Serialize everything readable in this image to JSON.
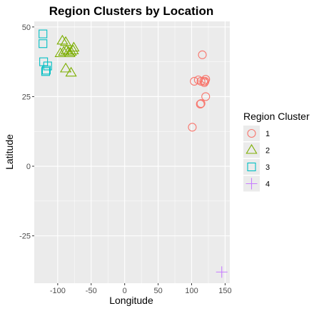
{
  "chart_data": {
    "type": "scatter",
    "title": "Region Clusters by Location",
    "xlabel": "Longitude",
    "ylabel": "Latitude",
    "xlim": [
      -135,
      157
    ],
    "ylim": [
      -42,
      52
    ],
    "xticks": [
      -100,
      -50,
      0,
      50,
      100,
      150
    ],
    "xtick_labels": [
      "-100",
      "-50",
      "0",
      "50",
      "100",
      "150"
    ],
    "yticks": [
      -25,
      0,
      25,
      50
    ],
    "ytick_labels": [
      "-25",
      "0",
      "25",
      "50"
    ],
    "grid": true,
    "legend": {
      "title": "Region Cluster",
      "placement": "right"
    },
    "series": [
      {
        "name": "1",
        "color": "#F8766D",
        "shape": "circle",
        "points": [
          [
            116,
            40
          ],
          [
            104,
            30.5
          ],
          [
            110,
            31
          ],
          [
            114,
            30.5
          ],
          [
            118,
            30.5
          ],
          [
            121,
            31.2
          ],
          [
            119,
            30
          ],
          [
            120,
            30.5
          ],
          [
            114,
            22.5
          ],
          [
            113,
            22.3
          ],
          [
            121,
            25
          ],
          [
            101,
            14
          ]
        ]
      },
      {
        "name": "2",
        "color": "#7CAE00",
        "shape": "triangle",
        "points": [
          [
            -93,
            45
          ],
          [
            -88,
            44.5
          ],
          [
            -96,
            40.5
          ],
          [
            -91,
            41
          ],
          [
            -87,
            41.5
          ],
          [
            -84,
            41
          ],
          [
            -80,
            41
          ],
          [
            -77,
            41.5
          ],
          [
            -76,
            42.5
          ],
          [
            -82,
            40.5
          ],
          [
            -88,
            35
          ],
          [
            -80,
            33.5
          ]
        ]
      },
      {
        "name": "3",
        "color": "#00BFC4",
        "shape": "square",
        "points": [
          [
            -122,
            47.5
          ],
          [
            -122,
            44
          ],
          [
            -121,
            37.5
          ],
          [
            -117,
            34.5
          ],
          [
            -118,
            34
          ],
          [
            -115,
            36
          ]
        ]
      },
      {
        "name": "4",
        "color": "#C77CFF",
        "shape": "plus",
        "points": [
          [
            145,
            -38
          ]
        ]
      }
    ]
  }
}
